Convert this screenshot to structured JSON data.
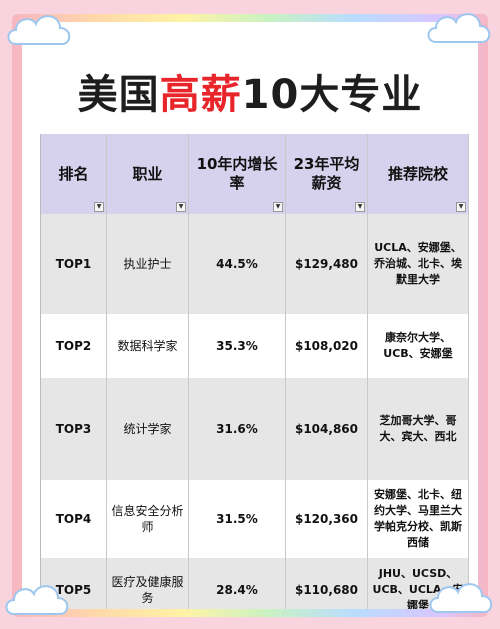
{
  "title": {
    "part1": "美国",
    "highlight": "高薪",
    "part2": "10大专业"
  },
  "colors": {
    "highlight": "#e8252b",
    "header_bg": "#d6d1ec",
    "row_grey": "#e6e6e6",
    "background": "#f9d3dd"
  },
  "table": {
    "headers": [
      "排名",
      "职业",
      "10年内增长率",
      "23年平均薪资",
      "推荐院校"
    ],
    "filter_icon": "dropdown-arrow-icon",
    "rows": [
      {
        "rank": "TOP1",
        "job": "执业护士",
        "growth": "44.5%",
        "salary": "$129,480",
        "schools": "UCLA、安娜堡、乔治城、北卡、埃默里大学"
      },
      {
        "rank": "TOP2",
        "job": "数据科学家",
        "growth": "35.3%",
        "salary": "$108,020",
        "schools": "康奈尔大学、UCB、安娜堡"
      },
      {
        "rank": "TOP3",
        "job": "统计学家",
        "growth": "31.6%",
        "salary": "$104,860",
        "schools": "芝加哥大学、哥大、宾大、西北"
      },
      {
        "rank": "TOP4",
        "job": "信息安全分析师",
        "growth": "31.5%",
        "salary": "$120,360",
        "schools": "安娜堡、北卡、纽约大学、马里兰大学帕克分校、凯斯西储"
      },
      {
        "rank": "TOP5",
        "job": "医疗及健康服务",
        "growth": "28.4%",
        "salary": "$110,680",
        "schools": "JHU、UCSD、UCB、UCLA、安娜堡"
      }
    ]
  }
}
